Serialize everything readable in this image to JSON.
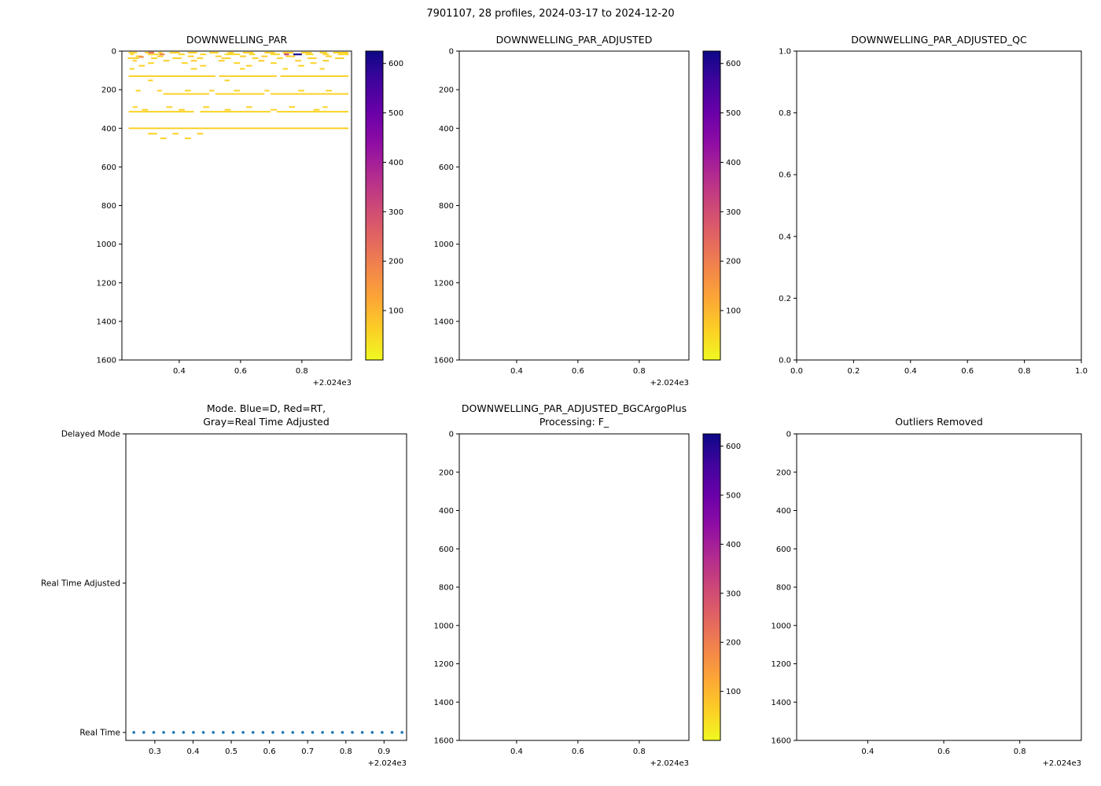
{
  "figure_title": "7901107, 28 profiles, 2024-03-17 to 2024-12-20",
  "chart_data": {
    "type": "multi-panel",
    "background": "#ffffff",
    "colormap": {
      "name": "plasma_reversed",
      "stops": [
        "#0d0887",
        "#41049d",
        "#6a00a8",
        "#8f0da4",
        "#b12a90",
        "#cc4778",
        "#e16462",
        "#f2844b",
        "#fca636",
        "#fcce25",
        "#f0f921"
      ]
    },
    "panels": [
      {
        "id": "downwelling_par",
        "type": "scatter-heat",
        "title": "DOWNWELLING_PAR",
        "xlim": [
          0.213,
          0.962
        ],
        "x_tick_vals": [
          0.4,
          0.6,
          0.8
        ],
        "x_tick_labels": [
          "0.4",
          "0.6",
          "0.8"
        ],
        "x_offset": "+2.024e3",
        "ylim": [
          0,
          1600
        ],
        "y_inverted": true,
        "y_tick_vals": [
          0,
          200,
          400,
          600,
          800,
          1000,
          1200,
          1400,
          1600
        ],
        "y_tick_labels": [
          "0",
          "200",
          "400",
          "600",
          "800",
          "1000",
          "1200",
          "1400",
          "1600"
        ],
        "colorbar": {
          "vmin": 0,
          "vmax": 625,
          "tick_vals": [
            100,
            200,
            300,
            400,
            500,
            600
          ],
          "tick_labels": [
            "100",
            "200",
            "300",
            "400",
            "500",
            "600"
          ]
        },
        "data_rows": [
          {
            "depth": 8,
            "value": 60,
            "segments": [
              [
                0.235,
                0.262
              ],
              [
                0.288,
                0.312
              ],
              [
                0.332,
                0.345
              ],
              [
                0.368,
                0.402
              ],
              [
                0.428,
                0.458
              ],
              [
                0.498,
                0.528
              ],
              [
                0.558,
                0.578
              ],
              [
                0.608,
                0.642
              ],
              [
                0.678,
                0.712
              ],
              [
                0.738,
                0.772
              ],
              [
                0.798,
                0.832
              ],
              [
                0.858,
                0.882
              ],
              [
                0.902,
                0.952
              ]
            ]
          },
          {
            "depth": 17,
            "value": 50,
            "segments": [
              [
                0.24,
                0.252
              ],
              [
                0.298,
                0.332
              ],
              [
                0.398,
                0.418
              ],
              [
                0.468,
                0.488
              ],
              [
                0.548,
                0.598
              ],
              [
                0.628,
                0.648
              ],
              [
                0.698,
                0.728
              ],
              [
                0.812,
                0.838
              ],
              [
                0.868,
                0.888
              ],
              [
                0.918,
                0.952
              ]
            ]
          },
          {
            "depth": 27,
            "value": 62,
            "segments": [
              [
                0.258,
                0.278
              ],
              [
                0.328,
                0.348
              ],
              [
                0.428,
                0.448
              ],
              [
                0.518,
                0.538
              ],
              [
                0.598,
                0.618
              ],
              [
                0.668,
                0.688
              ],
              [
                0.748,
                0.778
              ],
              [
                0.878,
                0.898
              ]
            ]
          },
          {
            "depth": 37,
            "value": 55,
            "segments": [
              [
                0.232,
                0.268
              ],
              [
                0.308,
                0.328
              ],
              [
                0.378,
                0.408
              ],
              [
                0.458,
                0.478
              ],
              [
                0.538,
                0.568
              ],
              [
                0.638,
                0.658
              ],
              [
                0.718,
                0.738
              ],
              [
                0.818,
                0.848
              ],
              [
                0.908,
                0.938
              ]
            ]
          },
          {
            "depth": 50,
            "value": 65,
            "segments": [
              [
                0.248,
                0.262
              ],
              [
                0.348,
                0.368
              ],
              [
                0.438,
                0.458
              ],
              [
                0.528,
                0.548
              ],
              [
                0.658,
                0.678
              ],
              [
                0.778,
                0.798
              ],
              [
                0.868,
                0.888
              ]
            ]
          },
          {
            "depth": 62,
            "value": 55,
            "segments": [
              [
                0.298,
                0.318
              ],
              [
                0.408,
                0.428
              ],
              [
                0.578,
                0.598
              ],
              [
                0.698,
                0.718
              ],
              [
                0.828,
                0.848
              ]
            ]
          },
          {
            "depth": 76,
            "value": 60,
            "segments": [
              [
                0.268,
                0.288
              ],
              [
                0.468,
                0.488
              ],
              [
                0.618,
                0.638
              ],
              [
                0.788,
                0.808
              ]
            ]
          },
          {
            "depth": 92,
            "value": 55,
            "segments": [
              [
                0.238,
                0.254
              ],
              [
                0.438,
                0.458
              ],
              [
                0.598,
                0.614
              ],
              [
                0.738,
                0.754
              ],
              [
                0.858,
                0.874
              ]
            ]
          },
          {
            "depth": 130,
            "value": 60,
            "segments": [
              [
                0.235,
                0.518
              ],
              [
                0.53,
                0.718
              ],
              [
                0.73,
                0.952
              ]
            ]
          },
          {
            "depth": 152,
            "value": 58,
            "segments": [
              [
                0.298,
                0.314
              ],
              [
                0.548,
                0.564
              ]
            ]
          },
          {
            "depth": 205,
            "value": 55,
            "segments": [
              [
                0.258,
                0.274
              ],
              [
                0.328,
                0.344
              ],
              [
                0.418,
                0.438
              ],
              [
                0.498,
                0.514
              ],
              [
                0.578,
                0.598
              ],
              [
                0.678,
                0.694
              ],
              [
                0.788,
                0.808
              ],
              [
                0.878,
                0.898
              ]
            ]
          },
          {
            "depth": 222,
            "value": 60,
            "segments": [
              [
                0.348,
                0.498
              ],
              [
                0.518,
                0.678
              ],
              [
                0.698,
                0.952
              ]
            ]
          },
          {
            "depth": 290,
            "value": 55,
            "segments": [
              [
                0.248,
                0.264
              ],
              [
                0.358,
                0.378
              ],
              [
                0.478,
                0.498
              ],
              [
                0.618,
                0.638
              ],
              [
                0.758,
                0.778
              ],
              [
                0.868,
                0.884
              ]
            ]
          },
          {
            "depth": 304,
            "value": 60,
            "segments": [
              [
                0.278,
                0.298
              ],
              [
                0.398,
                0.418
              ],
              [
                0.548,
                0.568
              ],
              [
                0.698,
                0.718
              ],
              [
                0.838,
                0.858
              ]
            ]
          },
          {
            "depth": 314,
            "value": 55,
            "segments": [
              [
                0.235,
                0.448
              ],
              [
                0.468,
                0.698
              ],
              [
                0.718,
                0.952
              ]
            ]
          },
          {
            "depth": 400,
            "value": 60,
            "segments": [
              [
                0.235,
                0.952
              ]
            ]
          },
          {
            "depth": 428,
            "value": 55,
            "segments": [
              [
                0.298,
                0.328
              ],
              [
                0.378,
                0.398
              ],
              [
                0.458,
                0.478
              ]
            ]
          },
          {
            "depth": 452,
            "value": 60,
            "segments": [
              [
                0.338,
                0.358
              ],
              [
                0.418,
                0.438
              ]
            ]
          }
        ],
        "special_segments": [
          {
            "depth": 8,
            "value": 230,
            "x0": 0.3,
            "x1": 0.318
          },
          {
            "depth": 17,
            "value": 190,
            "x0": 0.335,
            "x1": 0.352
          },
          {
            "depth": 17,
            "value": 320,
            "x0": 0.742,
            "x1": 0.758
          },
          {
            "depth": 17,
            "value": 615,
            "x0": 0.772,
            "x1": 0.8
          },
          {
            "depth": 30,
            "value": 175,
            "x0": 0.268,
            "x1": 0.284
          }
        ]
      },
      {
        "id": "downwelling_par_adjusted",
        "type": "scatter-heat",
        "title": "DOWNWELLING_PAR_ADJUSTED",
        "xlim": [
          0.213,
          0.962
        ],
        "x_tick_vals": [
          0.4,
          0.6,
          0.8
        ],
        "x_tick_labels": [
          "0.4",
          "0.6",
          "0.8"
        ],
        "x_offset": "+2.024e3",
        "ylim": [
          0,
          1600
        ],
        "y_inverted": true,
        "y_tick_vals": [
          0,
          200,
          400,
          600,
          800,
          1000,
          1200,
          1400,
          1600
        ],
        "y_tick_labels": [
          "0",
          "200",
          "400",
          "600",
          "800",
          "1000",
          "1200",
          "1400",
          "1600"
        ],
        "colorbar": {
          "vmin": 0,
          "vmax": 625,
          "tick_vals": [
            100,
            200,
            300,
            400,
            500,
            600
          ],
          "tick_labels": [
            "100",
            "200",
            "300",
            "400",
            "500",
            "600"
          ]
        },
        "data_rows": [],
        "special_segments": []
      },
      {
        "id": "downwelling_par_adjusted_qc",
        "type": "empty",
        "title": "DOWNWELLING_PAR_ADJUSTED_QC",
        "xlim": [
          0.0,
          1.0
        ],
        "x_tick_vals": [
          0.0,
          0.2,
          0.4,
          0.6,
          0.8,
          1.0
        ],
        "x_tick_labels": [
          "0.0",
          "0.2",
          "0.4",
          "0.6",
          "0.8",
          "1.0"
        ],
        "ylim": [
          0.0,
          1.0
        ],
        "y_inverted": false,
        "y_tick_vals": [
          0.0,
          0.2,
          0.4,
          0.6,
          0.8,
          1.0
        ],
        "y_tick_labels": [
          "0.0",
          "0.2",
          "0.4",
          "0.6",
          "0.8",
          "1.0"
        ]
      },
      {
        "id": "mode",
        "type": "scatter-categorical",
        "title_line1": "Mode. Blue=D, Red=RT,",
        "title_line2": "Gray=Real Time Adjusted",
        "xlim": [
          0.224,
          0.959
        ],
        "x_tick_vals": [
          0.3,
          0.4,
          0.5,
          0.6,
          0.7,
          0.8,
          0.9
        ],
        "x_tick_labels": [
          "0.3",
          "0.4",
          "0.5",
          "0.6",
          "0.7",
          "0.8",
          "0.9"
        ],
        "x_offset": "+2.024e3",
        "y_categories": [
          "Delayed Mode",
          "Real Time Adjusted",
          "Real Time"
        ],
        "points": {
          "category": "Real Time",
          "color": "#1f77b4",
          "x": [
            0.245,
            0.271,
            0.297,
            0.323,
            0.349,
            0.375,
            0.401,
            0.427,
            0.453,
            0.479,
            0.505,
            0.531,
            0.557,
            0.583,
            0.609,
            0.635,
            0.661,
            0.687,
            0.713,
            0.739,
            0.765,
            0.791,
            0.817,
            0.843,
            0.869,
            0.895,
            0.921,
            0.947
          ]
        }
      },
      {
        "id": "bgc_argo_plus_processing",
        "type": "scatter-heat",
        "title_line1": "DOWNWELLING_PAR_ADJUSTED_BGCArgoPlus",
        "title_line2": "Processing: F_",
        "xlim": [
          0.213,
          0.962
        ],
        "x_tick_vals": [
          0.4,
          0.6,
          0.8
        ],
        "x_tick_labels": [
          "0.4",
          "0.6",
          "0.8"
        ],
        "x_offset": "+2.024e3",
        "ylim": [
          0,
          1600
        ],
        "y_inverted": true,
        "y_tick_vals": [
          0,
          200,
          400,
          600,
          800,
          1000,
          1200,
          1400,
          1600
        ],
        "y_tick_labels": [
          "0",
          "200",
          "400",
          "600",
          "800",
          "1000",
          "1200",
          "1400",
          "1600"
        ],
        "colorbar": {
          "vmin": 0,
          "vmax": 625,
          "tick_vals": [
            100,
            200,
            300,
            400,
            500,
            600
          ],
          "tick_labels": [
            "100",
            "200",
            "300",
            "400",
            "500",
            "600"
          ]
        },
        "data_rows": [],
        "special_segments": []
      },
      {
        "id": "outliers_removed",
        "type": "empty",
        "title": "Outliers Removed",
        "xlim": [
          0.213,
          0.962
        ],
        "x_tick_vals": [
          0.4,
          0.6,
          0.8
        ],
        "x_tick_labels": [
          "0.4",
          "0.6",
          "0.8"
        ],
        "x_offset": "+2.024e3",
        "ylim": [
          0,
          1600
        ],
        "y_inverted": true,
        "y_tick_vals": [
          0,
          200,
          400,
          600,
          800,
          1000,
          1200,
          1400,
          1600
        ],
        "y_tick_labels": [
          "0",
          "200",
          "400",
          "600",
          "800",
          "1000",
          "1200",
          "1400",
          "1600"
        ]
      }
    ]
  }
}
